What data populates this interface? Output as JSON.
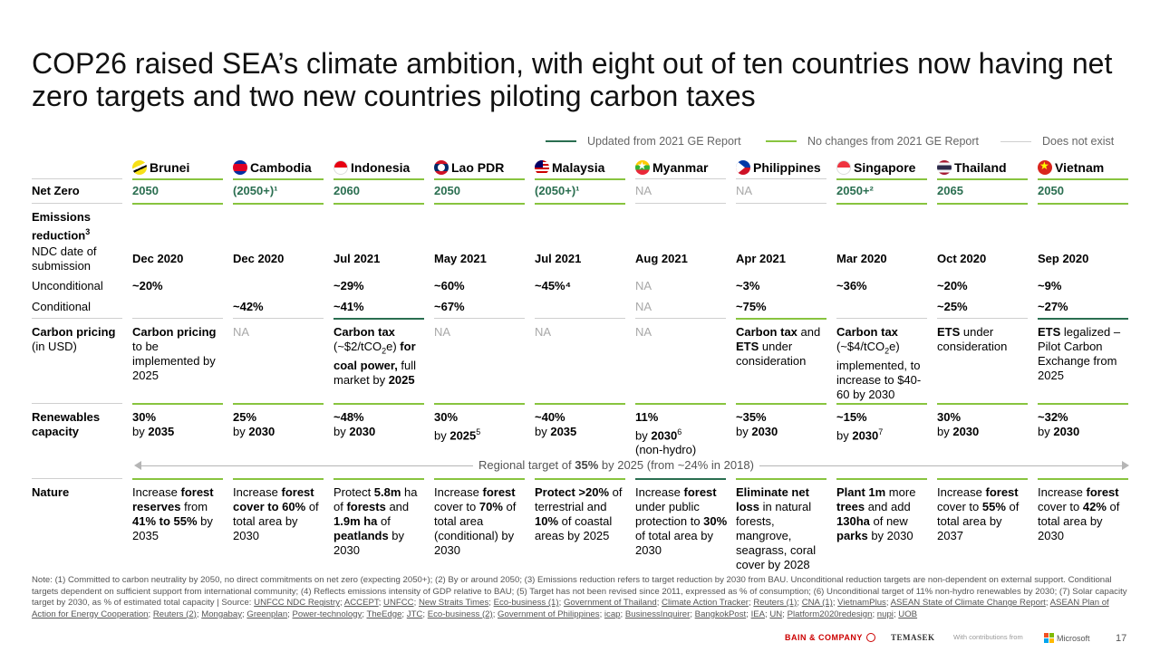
{
  "title": "COP26 raised SEA’s climate ambition, with eight out of ten countries now having net zero targets and two new countries piloting carbon taxes",
  "legend": {
    "updated": "Updated from 2021 GE Report",
    "no_change": "No changes from 2021 GE Report",
    "not_exist": "Does not exist"
  },
  "colors": {
    "updated": "#2a6e50",
    "no_change": "#88c43f",
    "not_exist": "#cfcfcf"
  },
  "row_labels": {
    "net_zero": "Net Zero",
    "emissions": "Emissions reduction",
    "emissions_sup": "3",
    "ndc_date": "NDC date of submission",
    "unconditional": "Unconditional",
    "conditional": "Conditional",
    "carbon_pricing": "Carbon pricing",
    "carbon_pricing_unit": "(in USD)",
    "renewables": "Renewables capacity",
    "nature": "Nature"
  },
  "countries": [
    {
      "name": "Brunei",
      "flag": "brunei-flag-icon",
      "net_zero": "2050",
      "ndc_date": "Dec 2020",
      "unconditional": "~20%",
      "conditional": ""
    },
    {
      "name": "Cambodia",
      "flag": "cambodia-flag-icon",
      "net_zero": "(2050+)¹",
      "ndc_date": "Dec 2020",
      "unconditional": "",
      "conditional": "~42%"
    },
    {
      "name": "Indonesia",
      "flag": "indonesia-flag-icon",
      "net_zero": "2060",
      "ndc_date": "Jul 2021",
      "unconditional": "~29%",
      "conditional": "~41%"
    },
    {
      "name": "Lao PDR",
      "flag": "lao-flag-icon",
      "net_zero": "2050",
      "ndc_date": "May 2021",
      "unconditional": "~60%",
      "conditional": "~67%"
    },
    {
      "name": "Malaysia",
      "flag": "malaysia-flag-icon",
      "net_zero": "(2050+)¹",
      "ndc_date": "Jul 2021",
      "unconditional": "~45%⁴",
      "conditional": ""
    },
    {
      "name": "Myanmar",
      "flag": "myanmar-flag-icon",
      "net_zero": "NA",
      "ndc_date": "Aug 2021",
      "unconditional": "NA",
      "conditional": "NA"
    },
    {
      "name": "Philippines",
      "flag": "philippines-flag-icon",
      "net_zero": "NA",
      "ndc_date": "Apr 2021",
      "unconditional": "~3%",
      "conditional": "~75%"
    },
    {
      "name": "Singapore",
      "flag": "singapore-flag-icon",
      "net_zero": "2050+²",
      "ndc_date": "Mar 2020",
      "unconditional": "~36%",
      "conditional": ""
    },
    {
      "name": "Thailand",
      "flag": "thailand-flag-icon",
      "net_zero": "2065",
      "ndc_date": "Oct 2020",
      "unconditional": "~20%",
      "conditional": "~25%"
    },
    {
      "name": "Vietnam",
      "flag": "vietnam-flag-icon",
      "net_zero": "2050",
      "ndc_date": "Sep 2020",
      "unconditional": "~9%",
      "conditional": "~27%"
    }
  ],
  "carbon_pricing": {
    "brunei": {
      "b": "Carbon pricing",
      "t": " to be implemented by 2025"
    },
    "cambodia": "NA",
    "indonesia": {
      "b1": "Carbon tax",
      "t1": " (~$2/tCO",
      "sub": "2",
      "t2": "e) ",
      "b2": "for coal power,",
      "t3": " full market by ",
      "b3": "2025"
    },
    "lao": "NA",
    "malaysia": "NA",
    "myanmar": "NA",
    "philippines": {
      "b1": "Carbon tax",
      "t1": " and ",
      "b2": "ETS",
      "t2": " under consideration"
    },
    "singapore": {
      "b": "Carbon tax",
      "t1": " (~$4/tCO",
      "sub": "2",
      "t2": "e) implemented, to increase to $40-60 by 2030"
    },
    "thailand": {
      "b": "ETS",
      "t": " under consideration"
    },
    "vietnam": {
      "b": "ETS",
      "t": " legalized – Pilot Carbon Exchange from 2025"
    }
  },
  "renewables": [
    {
      "pct": "30%",
      "pre": "by ",
      "year": "2035",
      "sup": "",
      "extra": ""
    },
    {
      "pct": "25%",
      "pre": "by ",
      "year": "2030",
      "sup": "",
      "extra": ""
    },
    {
      "pct": "~48%",
      "pre": "by ",
      "year": "2030",
      "sup": "",
      "extra": ""
    },
    {
      "pct": "30%",
      "pre": "by ",
      "year": "2025",
      "sup": "5",
      "extra": ""
    },
    {
      "pct": "~40%",
      "pre": "by ",
      "year": "2035",
      "sup": "",
      "extra": ""
    },
    {
      "pct": "11%",
      "pre": "by ",
      "year": "2030",
      "sup": "6",
      "extra": "(non-hydro)"
    },
    {
      "pct": "~35%",
      "pre": "by ",
      "year": "2030",
      "sup": "",
      "extra": ""
    },
    {
      "pct": "~15%",
      "pre": "by ",
      "year": "2030",
      "sup": "7",
      "extra": ""
    },
    {
      "pct": "30%",
      "pre": "by ",
      "year": "2030",
      "sup": "",
      "extra": ""
    },
    {
      "pct": "~32%",
      "pre": "by ",
      "year": "2030",
      "sup": "",
      "extra": ""
    }
  ],
  "regional": {
    "pre": "Regional target of ",
    "bold": "35%",
    "post": " by 2025 (from ~24% in 2018)"
  },
  "nature": {
    "brunei": [
      "Increase ",
      "forest reserves",
      " from ",
      "41% to 55%",
      " by 2035"
    ],
    "cambodia": [
      "Increase ",
      "forest cover to 60%",
      " of total area by 2030"
    ],
    "indonesia": [
      "Protect ",
      "5.8m",
      " ha of ",
      "forests",
      " and ",
      "1.9m ha",
      " of ",
      "peatlands",
      " by 2030"
    ],
    "lao": [
      "Increase ",
      "forest",
      " cover to ",
      "70%",
      " of total area (conditional) by 2030"
    ],
    "malaysia": [
      "Protect >20%",
      " of terrestrial and ",
      "10%",
      " of coastal areas by 2025"
    ],
    "myanmar": [
      "Increase ",
      "forest",
      " under public protection to ",
      "30%",
      " of total area by 2030"
    ],
    "philippines": [
      "Eliminate net loss",
      " in natural forests, mangrove, seagrass, coral cover by 2028"
    ],
    "singapore": [
      "Plant 1m",
      " more ",
      "trees",
      " and add ",
      "130ha",
      " of new ",
      "parks",
      " by 2030"
    ],
    "thailand": [
      "Increase ",
      "forest",
      " cover to ",
      "55%",
      " of total area by 2037"
    ],
    "vietnam": [
      "Increase ",
      "forest",
      " cover to ",
      "42%",
      " of total area by 2030"
    ]
  },
  "note": {
    "text": "Note: (1) Committed to carbon neutrality by 2050, no direct commitments on net zero (expecting 2050+); (2) By or around 2050; (3) Emissions reduction refers to target reduction by 2030 from BAU. Unconditional reduction targets are non-dependent on external support. Conditional targets dependent on sufficient support from international community; (4) Reflects emissions intensity of GDP relative to BAU; (5) Target has not been revised since 2011, expressed as % of consumption; (6) Unconditional target of 11% non-hydro renewables by 2030; (7) Solar capacity target by 2030, as % of estimated total capacity | Source: ",
    "sources": [
      "UNFCC NDC Registry",
      "ACCEPT",
      "UNFCC",
      "New Straits Times",
      "Eco-business (1)",
      "Government of Thailand",
      "Climate Action Tracker",
      "Reuters (1)",
      "CNA (1)",
      "VietnamPlus",
      "ASEAN State of Climate Change Report",
      "ASEAN Plan of Action for Energy Cooperation",
      "Reuters (2)",
      "Mongabay",
      "Greenplan",
      "Power-technology",
      "TheEdge",
      "JTC",
      "Eco-business (2)",
      "Government of Philippines",
      "icap",
      "BusinessInquirer",
      "BangkokPost",
      "IEA",
      "UN",
      "Platform2020redesign",
      "nupi",
      "UOB"
    ]
  },
  "footer": {
    "bain": "BAIN & COMPANY",
    "temasek": "TEMASEK",
    "contrib": "With contributions from",
    "microsoft": "Microsoft",
    "page": "17"
  }
}
